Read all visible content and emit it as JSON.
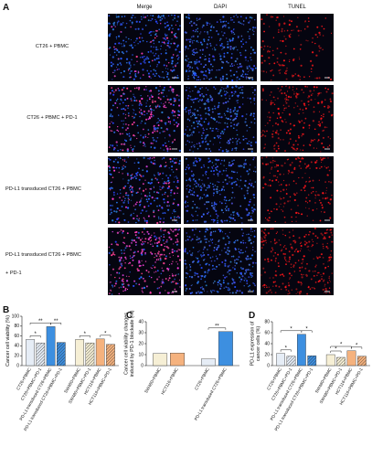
{
  "figure": {
    "panel_a": {
      "label": "A",
      "columns": [
        "Merge",
        "DAPI",
        "TUNEL"
      ],
      "rows": [
        [
          "CT26 + PBMC"
        ],
        [
          "CT26 + PBMC + PD-1"
        ],
        [
          "PD-L1 transduced CT26 + PBMC"
        ],
        [
          "PD-L1 transduced CT26 + PBMC",
          "+ PD-1"
        ]
      ]
    }
  },
  "chart_data": [
    {
      "type": "bar",
      "panel": "B",
      "ylabel": [
        "Cancer cell viability (%)"
      ],
      "categories": [
        "CT26+PBMC",
        "CT26+PBMC+PD-1",
        "PD-L1 transduced CT26+PBMC",
        "PD-L1 transduced CT26+PBMC+PD-1",
        "SW480+PBMC",
        "SW480+PBMC+PD-1",
        "HCT116+PBMC",
        "HCT116+PBMC+PD-1"
      ],
      "values": [
        53,
        46,
        79,
        47,
        53,
        46,
        54,
        43
      ],
      "colors": [
        "#e6edf6",
        "#e6edf6",
        "#3d8fe0",
        "#3d8fe0",
        "#f6efd5",
        "#f6efd5",
        "#f5b27e",
        "#f5b27e"
      ],
      "hatched": [
        false,
        true,
        false,
        true,
        false,
        true,
        false,
        true
      ],
      "ylim": [
        0,
        100
      ],
      "yticks": [
        0,
        20,
        40,
        60,
        80,
        100
      ],
      "brackets": [
        {
          "from": 0,
          "to": 1,
          "label": "*"
        },
        {
          "from": 0,
          "to": 2,
          "label": "**"
        },
        {
          "from": 2,
          "to": 3,
          "label": "**"
        },
        {
          "from": 4,
          "to": 5,
          "label": "*"
        },
        {
          "from": 6,
          "to": 7,
          "label": "*"
        }
      ]
    },
    {
      "type": "bar",
      "panel": "C",
      "ylabel": [
        "Cancer cell viability changes",
        "induced by PD-1 blockade (%)"
      ],
      "categories": [
        "SW480+PBMC",
        "HCT116+PBMC",
        "CT26+PBMC",
        "PD-L1 transduced CT26+PBMC"
      ],
      "values": [
        11,
        11.5,
        6,
        31
      ],
      "colors": [
        "#f6efd5",
        "#f5b27e",
        "#e6edf6",
        "#3d8fe0"
      ],
      "hatched": [
        false,
        false,
        false,
        false
      ],
      "ylim": [
        0,
        40
      ],
      "yticks": [
        0,
        10,
        20,
        30,
        40
      ],
      "brackets": [
        {
          "from": 2,
          "to": 3,
          "label": "**"
        }
      ]
    },
    {
      "type": "bar",
      "panel": "D",
      "ylabel": [
        "PD-L1 expression of",
        "cancer cells (%)"
      ],
      "categories": [
        "CT26+PBMC",
        "CT26+PBMC+PD-1",
        "PD-L1 transduced CT26+PBMC",
        "PD-L1 transduced CT26+PBMC+PD-1",
        "SW480+PBMC",
        "SW480+PBMC+PD-1",
        "HCT116+PBMC",
        "HCT116+PBMC+PD-1"
      ],
      "values": [
        22,
        17,
        57,
        18,
        20,
        15,
        27,
        17
      ],
      "colors": [
        "#e6edf6",
        "#e6edf6",
        "#3d8fe0",
        "#3d8fe0",
        "#f6efd5",
        "#f6efd5",
        "#f5b27e",
        "#f5b27e"
      ],
      "hatched": [
        false,
        true,
        false,
        true,
        false,
        true,
        false,
        true
      ],
      "ylim": [
        0,
        80
      ],
      "yticks": [
        0,
        20,
        40,
        60,
        80
      ],
      "brackets": [
        {
          "from": 0,
          "to": 1,
          "label": "*"
        },
        {
          "from": 0,
          "to": 2,
          "label": "*"
        },
        {
          "from": 2,
          "to": 3,
          "label": "*"
        },
        {
          "from": 4,
          "to": 5,
          "label": "*"
        },
        {
          "from": 4,
          "to": 6,
          "label": "*"
        },
        {
          "from": 6,
          "to": 7,
          "label": "*"
        }
      ]
    }
  ]
}
